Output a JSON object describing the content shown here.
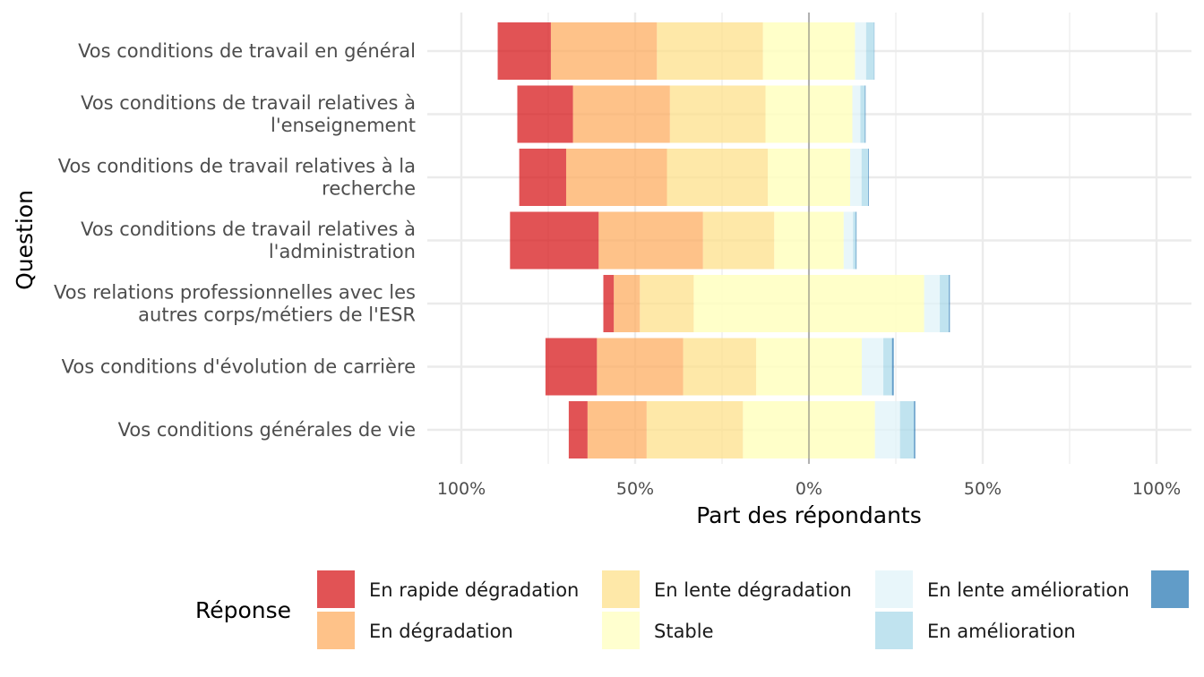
{
  "chart_data": {
    "type": "bar",
    "orientation": "horizontal",
    "stacking": "diverging",
    "xlabel": "Part des répondants",
    "ylabel": "Question",
    "xlim": [
      -100,
      100
    ],
    "xtick_values": [
      -100,
      -50,
      0,
      50,
      100
    ],
    "xtick_labels": [
      "100%",
      "50%",
      "0%",
      "50%",
      "100%"
    ],
    "grid": true,
    "legend": {
      "title": "Réponse",
      "position": "bottom"
    },
    "categories": [
      "Vos conditions de travail en général",
      "Vos conditions de travail relatives à\nl'enseignement",
      "Vos conditions de travail relatives à la\nrecherche",
      "Vos conditions de travail relatives à\nl'administration",
      "Vos relations professionnelles avec les\nautres corps/métiers de l'ESR",
      "Vos conditions d'évolution de carrière",
      "Vos conditions générales de vie"
    ],
    "series": [
      {
        "name": "En rapide dégradation",
        "side": "negative",
        "color": "#d7191c",
        "values": [
          15.3,
          16.0,
          13.5,
          25.5,
          3.0,
          14.8,
          5.4
        ]
      },
      {
        "name": "En dégradation",
        "side": "negative",
        "color": "#fdae61",
        "values": [
          30.5,
          27.9,
          29.0,
          30.0,
          7.5,
          24.8,
          17.0
        ]
      },
      {
        "name": "En lente dégradation",
        "side": "negative",
        "color": "#fee08b",
        "values": [
          30.5,
          27.5,
          29.0,
          20.5,
          15.5,
          21.0,
          27.7
        ]
      },
      {
        "name": "Stable",
        "side": "both",
        "color": "#ffffbf",
        "values": [
          26.5,
          25.0,
          23.7,
          20.0,
          66.3,
          30.4,
          38.0
        ]
      },
      {
        "name": "En lente amélioration",
        "side": "positive",
        "color": "#e0f3f8",
        "values": [
          3.2,
          2.3,
          3.3,
          2.7,
          4.5,
          6.2,
          7.2
        ]
      },
      {
        "name": "En amélioration",
        "side": "positive",
        "color": "#abd9e9",
        "values": [
          2.3,
          1.3,
          1.9,
          0.8,
          2.6,
          2.5,
          4.0
        ]
      },
      {
        "name": "",
        "side": "positive",
        "color": "#2c7bb6",
        "values": [
          0.1,
          0.2,
          0.2,
          0.2,
          0.3,
          0.5,
          0.4
        ]
      }
    ]
  }
}
